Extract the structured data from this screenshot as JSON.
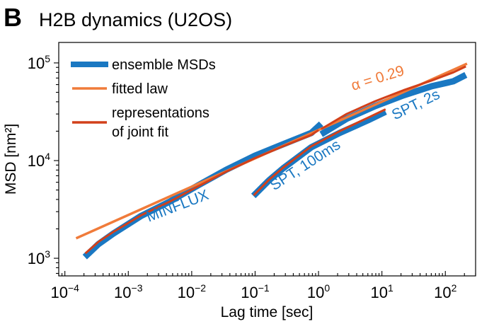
{
  "panel": {
    "letter": "B",
    "title": "H2B dynamics (U2OS)"
  },
  "colors": {
    "ensemble": "#1a78c2",
    "fit": "#f07b3a",
    "joint": "#d2401a",
    "axis": "#000000"
  },
  "chart_data": {
    "type": "line",
    "title": "H2B dynamics (U2OS)",
    "xlabel": "Lag time [sec]",
    "ylabel": "MSD [nm²]",
    "xscale": "log",
    "yscale": "log",
    "xlim": [
      8e-05,
      300
    ],
    "ylim": [
      660,
      162000
    ],
    "grid": false,
    "legend_position": "top-left",
    "x_ticks": [
      {
        "value": 0.0001,
        "base": "10",
        "exp": "−4"
      },
      {
        "value": 0.001,
        "base": "10",
        "exp": "−3"
      },
      {
        "value": 0.01,
        "base": "10",
        "exp": "−2"
      },
      {
        "value": 0.1,
        "base": "10",
        "exp": "−1"
      },
      {
        "value": 1,
        "base": "10",
        "exp": "0"
      },
      {
        "value": 10,
        "base": "10",
        "exp": "1"
      },
      {
        "value": 100,
        "base": "10",
        "exp": "2"
      }
    ],
    "y_ticks": [
      {
        "value": 1000,
        "base": "10",
        "exp": "3"
      },
      {
        "value": 10000,
        "base": "10",
        "exp": "4"
      },
      {
        "value": 100000,
        "base": "10",
        "exp": "5"
      }
    ],
    "legend": [
      {
        "label": "ensemble MSDs",
        "series": "ensemble"
      },
      {
        "label": "fitted law",
        "series": "fit"
      },
      {
        "label_lines": [
          "representations",
          "of joint fit"
        ],
        "series": "joint"
      }
    ],
    "series": [
      {
        "name": "ensemble MSDs (MINFLUX)",
        "style": "ensemble",
        "x": [
          0.000206,
          0.00034,
          0.00058,
          0.0016,
          0.0045,
          0.0126,
          0.035,
          0.099,
          0.276,
          0.77,
          1.1
        ],
        "y": [
          1030,
          1400,
          1790,
          2720,
          3800,
          5580,
          8050,
          11200,
          14700,
          19200,
          23800
        ]
      },
      {
        "name": "ensemble MSDs (SPT, 100ms)",
        "style": "ensemble",
        "x": [
          0.094,
          0.165,
          0.276,
          0.77,
          2.16,
          6.05,
          11.4
        ],
        "y": [
          4350,
          6270,
          8320,
          13700,
          19200,
          25900,
          31600
        ]
      },
      {
        "name": "ensemble MSDs (SPT, 2s)",
        "style": "ensemble",
        "x": [
          1.1,
          2.78,
          7.8,
          21.8,
          61,
          134,
          211
        ],
        "y": [
          18600,
          26800,
          36100,
          46500,
          57700,
          64900,
          75300
        ]
      },
      {
        "name": "fitted law",
        "style": "fit",
        "alpha": 0.29,
        "x": [
          0.00015,
          220
        ],
        "y": [
          1600,
          98200
        ]
      },
      {
        "name": "joint fit (MINFLUX)",
        "style": "joint",
        "x": [
          0.00021,
          0.00034,
          0.00058,
          0.0016,
          0.0045,
          0.0126,
          0.035,
          0.099,
          0.276,
          0.77,
          1.0
        ],
        "y": [
          1120,
          1480,
          1860,
          2760,
          3800,
          5450,
          7700,
          10600,
          14000,
          18300,
          20500
        ]
      },
      {
        "name": "joint fit (SPT, 100ms)",
        "style": "joint",
        "x": [
          0.095,
          0.165,
          0.276,
          0.77,
          2.16,
          6.05,
          11.4
        ],
        "y": [
          4400,
          6350,
          8450,
          14000,
          20000,
          27500,
          33500
        ]
      },
      {
        "name": "joint fit (SPT, 2s)",
        "style": "joint",
        "x": [
          1.1,
          2.78,
          7.8,
          21.8,
          61,
          134,
          211
        ],
        "y": [
          21000,
          30000,
          40500,
          52500,
          66000,
          80000,
          92000
        ]
      }
    ],
    "annotations": [
      {
        "text": "α = 0.29",
        "color_key": "fit",
        "x": 3.5,
        "y": 52000,
        "rotation_deg": -17
      },
      {
        "text": "MINFLUX",
        "color_key": "ensemble",
        "x": 0.0021,
        "y": 2350,
        "rotation_deg": -21
      },
      {
        "text": "SPT, 100ms",
        "color_key": "ensemble",
        "x": 0.2,
        "y": 4900,
        "rotation_deg": -33
      },
      {
        "text": "SPT, 2s",
        "color_key": "ensemble",
        "x": 16,
        "y": 26000,
        "rotation_deg": -26
      }
    ]
  }
}
